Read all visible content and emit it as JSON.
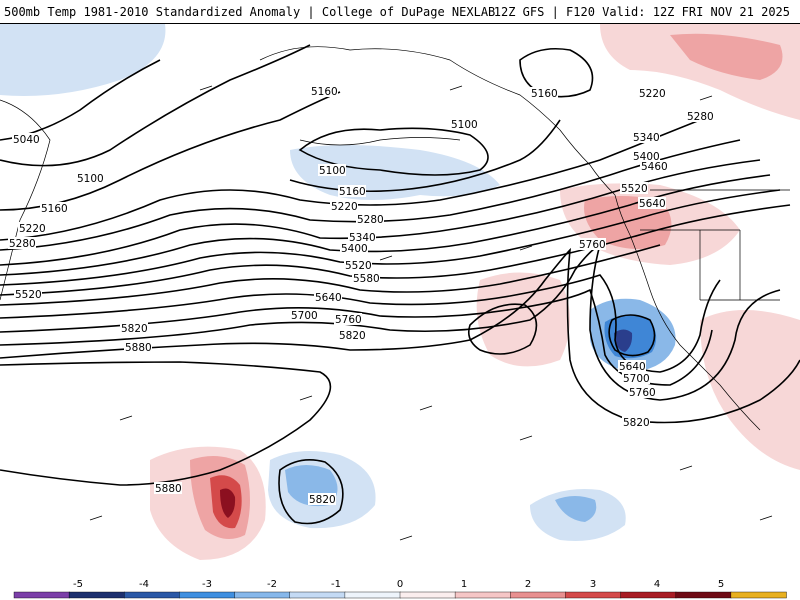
{
  "header": {
    "left_title": "500mb Temp 1981-2010 Standardized Anomaly | College of DuPage NEXLAB",
    "right_title": "12Z GFS | F120 Valid: 12Z FRI NOV 21 2025"
  },
  "contour_labels": [
    "5040",
    "5100",
    "5160",
    "5220",
    "5280",
    "5340",
    "5400",
    "5460",
    "5520",
    "5580",
    "5640",
    "5700",
    "5760",
    "5820",
    "5880"
  ],
  "legend": {
    "ticks": [
      "-5",
      "-4",
      "-3",
      "-2",
      "-1",
      "0",
      "1",
      "2",
      "3",
      "4",
      "5"
    ],
    "colors": [
      "#7b3fa8",
      "#1c2f6e",
      "#2a58a6",
      "#3f8fe0",
      "#86b7ea",
      "#c4daf4",
      "#eef4fb",
      "#fbeeee",
      "#f5c6c6",
      "#e89090",
      "#d44a4a",
      "#a81c24",
      "#6e0a14",
      "#e8b020"
    ]
  },
  "colors": {
    "cold_light": "#d2e2f4",
    "cold_mid": "#8ab8e8",
    "cold_strong": "#3f86d6",
    "cold_core": "#2a3e8c",
    "warm_light": "#f7d7d7",
    "warm_mid": "#eea4a4",
    "warm_strong": "#d44a4a",
    "warm_core": "#8c1020"
  }
}
